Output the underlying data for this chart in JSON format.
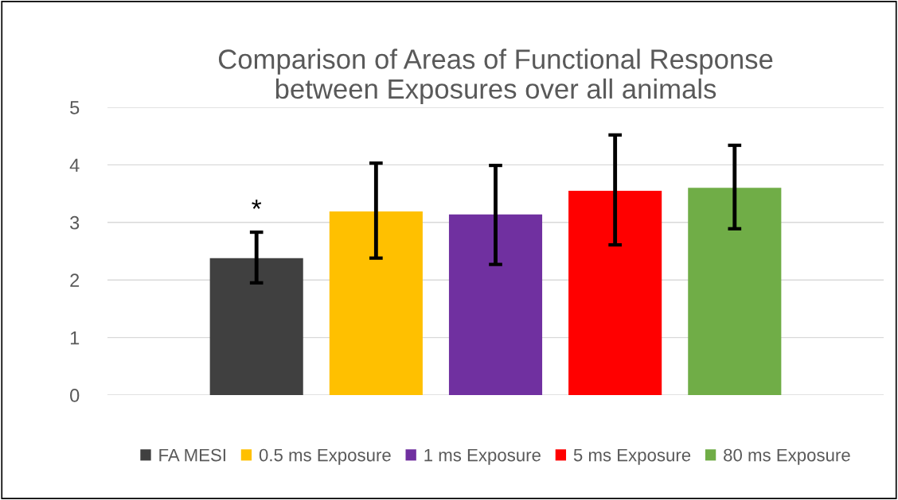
{
  "chart_data": {
    "type": "bar",
    "title": "Comparison of Areas of Functional Response\nbetween Exposures over all animals",
    "categories": [
      null
    ],
    "series": [
      {
        "name": "FA MESI",
        "color": "#404040",
        "values": [
          2.38
        ],
        "errors": [
          [
            1.95,
            2.83
          ]
        ]
      },
      {
        "name": "0.5 ms Exposure",
        "color": "#ffc000",
        "values": [
          3.19
        ],
        "errors": [
          [
            2.38,
            4.03
          ]
        ]
      },
      {
        "name": "1 ms Exposure",
        "color": "#7030a0",
        "values": [
          3.14
        ],
        "errors": [
          [
            2.27,
            3.99
          ]
        ]
      },
      {
        "name": "5 ms Exposure",
        "color": "#ff0000",
        "values": [
          3.55
        ],
        "errors": [
          [
            2.61,
            4.52
          ]
        ]
      },
      {
        "name": "80 ms Exposure",
        "color": "#70ad47",
        "values": [
          3.6
        ],
        "errors": [
          [
            2.89,
            4.34
          ]
        ]
      }
    ],
    "ylim": [
      0,
      5
    ],
    "yticks": [
      0,
      1,
      2,
      3,
      4,
      5
    ],
    "grid": "y",
    "legend": "bottom",
    "tick_labels": "y",
    "annotations": [
      "*"
    ]
  }
}
